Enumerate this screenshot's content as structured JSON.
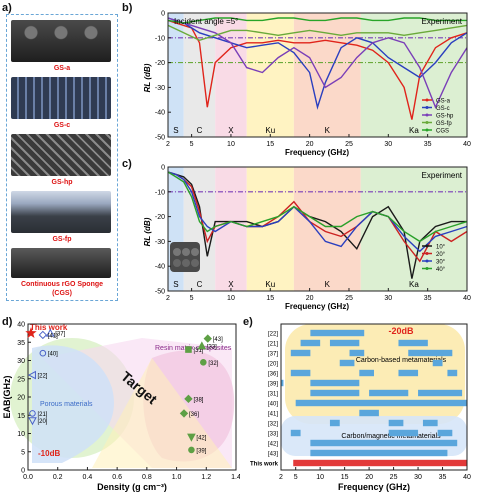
{
  "panel_a": {
    "letter": "a)",
    "labels": [
      "GS-a",
      "GS-c",
      "GS-hp",
      "GS-fp",
      "Continuous rGO Sponge",
      "(CGS)"
    ]
  },
  "panel_b": {
    "letter": "b)",
    "annotation": "Incident angle =5°",
    "corner_label": "Experiment",
    "xlabel": "Frequency (GHz)",
    "ylabel": "RL (dB)",
    "bands": [
      "S",
      "C",
      "X",
      "Ku",
      "K",
      "Ka"
    ],
    "legend": [
      "GS-a",
      "GS-c",
      "GS-hp",
      "GS-fp",
      "CGS"
    ]
  },
  "panel_c": {
    "letter": "c)",
    "corner_label": "Experiment",
    "xlabel": "Frequency (GHz)",
    "ylabel": "RL (dB)",
    "bands": [
      "S",
      "C",
      "X",
      "Ku",
      "K",
      "Ka"
    ],
    "legend": [
      "10°",
      "20°",
      "30°",
      "40°"
    ]
  },
  "panel_d": {
    "letter": "d)",
    "xlabel": "Density (g cm⁻³)",
    "ylabel": "EAB(GHz)",
    "this_work": "This work",
    "target": "Target",
    "region_porous": "Porous materials",
    "region_resin": "Resin matrix composites",
    "threshold": "-10dB",
    "point_labels": [
      "[37]",
      "[41]",
      "[40]",
      "[22]",
      "[21]",
      "[20]",
      "[43]",
      "[31]",
      "[33]",
      "[32]",
      "[38]",
      "[36]",
      "[42]",
      "[39]"
    ]
  },
  "panel_e": {
    "letter": "e)",
    "xlabel": "Frequency (GHz)",
    "threshold": "-20dB",
    "region_carbon": "Carbon-based metamaterials",
    "region_magnetic": "Carbon/magnetic metamaterials",
    "rows": [
      "[22]",
      "[21]",
      "[37]",
      "[20]",
      "[36]",
      "[39]",
      "[31]",
      "[40]",
      "[41]",
      "[32]",
      "[33]",
      "[42]",
      "[43]",
      "This work"
    ]
  },
  "colors": {
    "gs_a": "#e0241b",
    "gs_c": "#2a3fbf",
    "gs_hp": "#7a3fb8",
    "gs_fp": "#6aaa3a",
    "cgs": "#28a428",
    "deg10": "#1a1a1a",
    "deg20": "#cc2222",
    "deg30": "#2a3fbf",
    "deg40": "#2aa02a",
    "band_s": "#cfe2f6",
    "band_c": "#e9e9e9",
    "band_x": "#f9dbe6",
    "band_ku": "#fff3c2",
    "band_k": "#fbd9c9",
    "band_ka": "#dcefd2",
    "bar": "#5aa6dc",
    "this_work_bar": "#e33a3a"
  },
  "chart_data": [
    {
      "type": "line",
      "panel": "b",
      "xlim": [
        2,
        40
      ],
      "ylim": [
        -50,
        0
      ],
      "xticks": [
        2,
        5,
        10,
        15,
        20,
        25,
        30,
        35,
        40
      ],
      "yticks": [
        0,
        -10,
        -20,
        -30,
        -40,
        -50
      ],
      "series": [
        {
          "name": "GS-a",
          "x": [
            2,
            4,
            5,
            6,
            7,
            8,
            10,
            12,
            14,
            16,
            18,
            20,
            22,
            24,
            26,
            28,
            30,
            32,
            33,
            34,
            36,
            38,
            40
          ],
          "y": [
            -3,
            -5,
            -6,
            -12,
            -38,
            -20,
            -14,
            -12,
            -12,
            -11,
            -12,
            -12,
            -11,
            -12,
            -13,
            -15,
            -20,
            -30,
            -43,
            -25,
            -14,
            -10,
            -8
          ]
        },
        {
          "name": "GS-c",
          "x": [
            2,
            4,
            5,
            6,
            8,
            10,
            12,
            14,
            16,
            18,
            20,
            21,
            22,
            24,
            26,
            28,
            30,
            32,
            34,
            36,
            38,
            40
          ],
          "y": [
            -2,
            -4,
            -6,
            -8,
            -10,
            -12,
            -14,
            -13,
            -12,
            -16,
            -24,
            -38,
            -28,
            -14,
            -10,
            -12,
            -18,
            -22,
            -26,
            -20,
            -12,
            -8
          ]
        },
        {
          "name": "GS-hp",
          "x": [
            2,
            4,
            5,
            6,
            8,
            10,
            12,
            14,
            16,
            18,
            20,
            22,
            24,
            26,
            28,
            30,
            32,
            34,
            36,
            38,
            40
          ],
          "y": [
            -2,
            -4,
            -5,
            -6,
            -8,
            -12,
            -22,
            -24,
            -18,
            -14,
            -18,
            -30,
            -26,
            -18,
            -12,
            -10,
            -12,
            -22,
            -38,
            -24,
            -14
          ]
        },
        {
          "name": "GS-fp",
          "x": [
            2,
            4,
            6,
            8,
            10,
            12,
            14,
            16,
            18,
            20,
            22,
            24,
            26,
            28,
            30,
            32,
            34,
            36,
            38,
            40
          ],
          "y": [
            -5,
            -8,
            -11,
            -9,
            -7,
            -7,
            -8,
            -9,
            -8,
            -7,
            -8,
            -9,
            -8,
            -8,
            -8,
            -9,
            -8,
            -7,
            -6,
            -5
          ]
        },
        {
          "name": "CGS",
          "x": [
            2,
            4,
            6,
            8,
            10,
            12,
            14,
            16,
            18,
            20,
            22,
            24,
            26,
            28,
            30,
            32,
            34,
            36,
            38,
            40
          ],
          "y": [
            -3,
            -4,
            -3,
            -2,
            -2,
            -3,
            -3,
            -2,
            -2,
            -3,
            -3,
            -2,
            -2,
            -3,
            -3,
            -2,
            -2,
            -3,
            -3,
            -3
          ]
        }
      ],
      "reference_lines": [
        {
          "y": -10,
          "style": "dash-dot",
          "color": "#7a3fb8"
        },
        {
          "y": -20,
          "style": "dash-dot",
          "color": "#6aaa3a"
        }
      ]
    },
    {
      "type": "line",
      "panel": "c",
      "xlim": [
        2,
        40
      ],
      "ylim": [
        -50,
        0
      ],
      "xticks": [
        2,
        5,
        10,
        15,
        20,
        25,
        30,
        35,
        40
      ],
      "yticks": [
        0,
        -10,
        -20,
        -30,
        -40,
        -50
      ],
      "series": [
        {
          "name": "10°",
          "x": [
            2,
            3,
            4,
            5,
            6,
            7,
            8,
            10,
            12,
            14,
            16,
            18,
            20,
            22,
            24,
            26,
            28,
            30,
            32,
            33,
            34,
            36,
            38,
            40
          ],
          "y": [
            -2,
            -3,
            -4,
            -7,
            -16,
            -36,
            -22,
            -22,
            -22,
            -24,
            -22,
            -16,
            -20,
            -22,
            -26,
            -33,
            -20,
            -16,
            -26,
            -45,
            -30,
            -24,
            -22,
            -22
          ]
        },
        {
          "name": "20°",
          "x": [
            2,
            3,
            4,
            5,
            6,
            7,
            8,
            10,
            12,
            14,
            16,
            18,
            20,
            22,
            24,
            26,
            28,
            30,
            32,
            34,
            36,
            38,
            40
          ],
          "y": [
            -2,
            -3,
            -5,
            -8,
            -18,
            -30,
            -24,
            -22,
            -24,
            -24,
            -20,
            -14,
            -22,
            -26,
            -28,
            -24,
            -18,
            -20,
            -30,
            -38,
            -26,
            -30,
            -26
          ]
        },
        {
          "name": "30°",
          "x": [
            2,
            3,
            4,
            5,
            6,
            7,
            8,
            10,
            12,
            14,
            16,
            18,
            20,
            22,
            24,
            26,
            28,
            30,
            32,
            34,
            36,
            38,
            40
          ],
          "y": [
            -2,
            -3,
            -5,
            -10,
            -20,
            -24,
            -26,
            -22,
            -24,
            -24,
            -22,
            -16,
            -22,
            -30,
            -32,
            -24,
            -18,
            -20,
            -28,
            -34,
            -28,
            -26,
            -24
          ]
        },
        {
          "name": "40°",
          "x": [
            2,
            3,
            4,
            5,
            6,
            7,
            8,
            10,
            12,
            14,
            16,
            18,
            20,
            22,
            24,
            26,
            28,
            30,
            32,
            34,
            36,
            38,
            40
          ],
          "y": [
            -2,
            -4,
            -6,
            -12,
            -22,
            -26,
            -24,
            -22,
            -24,
            -22,
            -20,
            -16,
            -20,
            -24,
            -24,
            -20,
            -18,
            -20,
            -26,
            -30,
            -26,
            -24,
            -22
          ]
        }
      ],
      "reference_lines": [
        {
          "y": -10,
          "style": "dash-dot",
          "color": "#7a3fb8"
        }
      ]
    },
    {
      "type": "scatter",
      "panel": "d",
      "xlim": [
        0,
        1.4
      ],
      "ylim": [
        0,
        40
      ],
      "xticks": [
        0.0,
        0.2,
        0.4,
        0.6,
        0.8,
        1.0,
        1.2,
        1.4
      ],
      "yticks": [
        0,
        5,
        10,
        15,
        20,
        25,
        30,
        35,
        40
      ],
      "points": [
        {
          "label": "This work",
          "x": 0.02,
          "y": 37.5,
          "marker": "star",
          "color": "#e0241b"
        },
        {
          "label": "[37]",
          "x": 0.15,
          "y": 37.5,
          "marker": "triangle-open",
          "color": "#4a62c8"
        },
        {
          "label": "[41]",
          "x": 0.1,
          "y": 37.0,
          "marker": "diamond-open",
          "color": "#4a62c8"
        },
        {
          "label": "[40]",
          "x": 0.1,
          "y": 32.0,
          "marker": "circle-open",
          "color": "#4a62c8"
        },
        {
          "label": "[22]",
          "x": 0.03,
          "y": 26.0,
          "marker": "triangle-left-open",
          "color": "#4a62c8"
        },
        {
          "label": "[21]",
          "x": 0.03,
          "y": 15.5,
          "marker": "circle-open",
          "color": "#4a62c8"
        },
        {
          "label": "[20]",
          "x": 0.03,
          "y": 13.5,
          "marker": "triangle-down-open",
          "color": "#4a62c8"
        },
        {
          "label": "[43]",
          "x": 1.21,
          "y": 36.0,
          "marker": "diamond",
          "color": "#5ea045"
        },
        {
          "label": "[31]",
          "x": 1.08,
          "y": 33.0,
          "marker": "square",
          "color": "#5ea045"
        },
        {
          "label": "[33]",
          "x": 1.17,
          "y": 34.0,
          "marker": "triangle",
          "color": "#5ea045"
        },
        {
          "label": "[32]",
          "x": 1.18,
          "y": 29.5,
          "marker": "circle",
          "color": "#5ea045"
        },
        {
          "label": "[38]",
          "x": 1.08,
          "y": 19.5,
          "marker": "diamond",
          "color": "#5ea045"
        },
        {
          "label": "[36]",
          "x": 1.05,
          "y": 15.5,
          "marker": "diamond",
          "color": "#5ea045"
        },
        {
          "label": "[42]",
          "x": 1.1,
          "y": 9.0,
          "marker": "triangle-down",
          "color": "#5ea045"
        },
        {
          "label": "[39]",
          "x": 1.1,
          "y": 5.5,
          "marker": "circle",
          "color": "#5ea045"
        }
      ]
    },
    {
      "type": "bar",
      "panel": "e",
      "orientation": "horizontal",
      "xlim": [
        2,
        40
      ],
      "xticks": [
        2,
        5,
        10,
        15,
        20,
        25,
        30,
        35,
        40
      ],
      "rows": [
        {
          "label": "[22]",
          "segments": [
            [
              8,
              19
            ]
          ]
        },
        {
          "label": "[21]",
          "segments": [
            [
              6,
              10
            ],
            [
              12,
              18
            ],
            [
              26,
              32
            ]
          ]
        },
        {
          "label": "[37]",
          "segments": [
            [
              4,
              8
            ],
            [
              16,
              19
            ],
            [
              28,
              37
            ]
          ]
        },
        {
          "label": "[20]",
          "segments": [
            [
              14,
              17
            ],
            [
              33,
              35
            ]
          ]
        },
        {
          "label": "[36]",
          "segments": [
            [
              4,
              8
            ],
            [
              18,
              21
            ],
            [
              26,
              30
            ],
            [
              36,
              38
            ]
          ]
        },
        {
          "label": "[39]",
          "segments": [
            [
              2,
              2.5
            ],
            [
              8,
              18
            ]
          ]
        },
        {
          "label": "[31]",
          "segments": [
            [
              8,
              18
            ],
            [
              20,
              28
            ],
            [
              30,
              39
            ]
          ]
        },
        {
          "label": "[40]",
          "segments": [
            [
              5,
              40
            ]
          ]
        },
        {
          "label": "[41]",
          "segments": [
            [
              18,
              22
            ]
          ]
        },
        {
          "label": "[32]",
          "segments": [
            [
              12,
              14
            ],
            [
              24,
              27
            ],
            [
              31,
              34
            ]
          ]
        },
        {
          "label": "[33]",
          "segments": [
            [
              4,
              6
            ],
            [
              24,
              30
            ],
            [
              34,
              37
            ]
          ]
        },
        {
          "label": "[42]",
          "segments": [
            [
              8,
              38
            ]
          ]
        },
        {
          "label": "[43]",
          "segments": [
            [
              8,
              36
            ]
          ]
        },
        {
          "label": "This work",
          "segments": [
            [
              4.5,
              40
            ]
          ],
          "highlight": true
        }
      ]
    }
  ]
}
